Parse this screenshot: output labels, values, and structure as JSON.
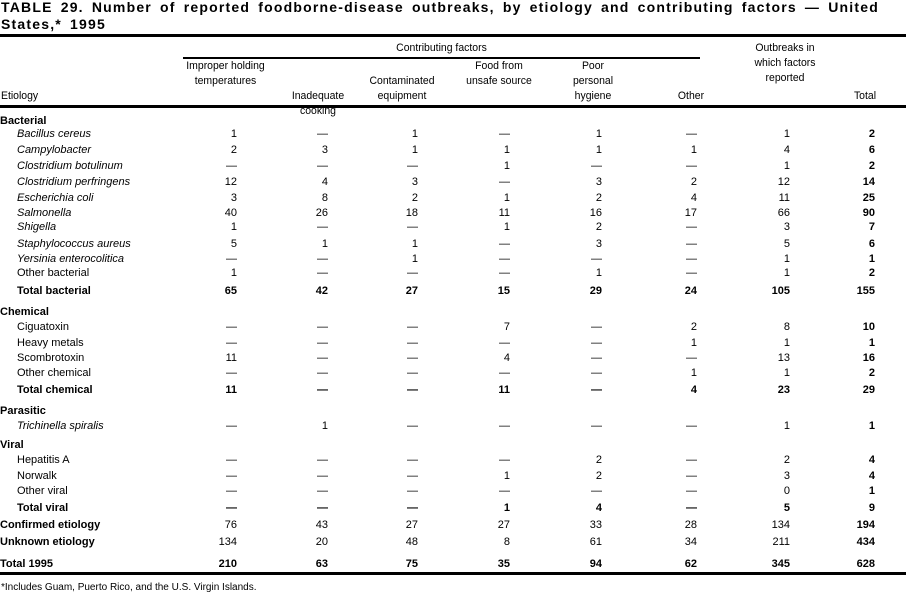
{
  "title": "TABLE 29. Number of reported foodborne-disease outbreaks, by etiology and contributing factors — United States,* 1995",
  "header": {
    "etiology": "Etiology",
    "group": "Contributing factors",
    "columns": [
      "Improper holding temperatures",
      "Inadequate cooking",
      "Contaminated equipment",
      "Food from unsafe source",
      "Poor personal hygiene",
      "Other",
      "Outbreaks in which factors reported",
      "Total"
    ]
  },
  "rows": [
    {
      "label": "Bacterial",
      "kind": "group",
      "values": []
    },
    {
      "label": "Bacillus cereus",
      "kind": "item",
      "italic": true,
      "values": [
        "1",
        "—",
        "1",
        "—",
        "1",
        "—",
        "1",
        "2"
      ]
    },
    {
      "label": "Campylobacter",
      "kind": "item",
      "italic": true,
      "values": [
        "2",
        "3",
        "1",
        "1",
        "1",
        "1",
        "4",
        "6"
      ]
    },
    {
      "label": "Clostridium botulinum",
      "kind": "item",
      "italic": true,
      "values": [
        "—",
        "—",
        "—",
        "1",
        "—",
        "—",
        "1",
        "2"
      ]
    },
    {
      "label": "Clostridium perfringens",
      "kind": "item",
      "italic": true,
      "values": [
        "12",
        "4",
        "3",
        "—",
        "3",
        "2",
        "12",
        "14"
      ]
    },
    {
      "label": "Escherichia coli",
      "kind": "item",
      "italic": true,
      "values": [
        "3",
        "8",
        "2",
        "1",
        "2",
        "4",
        "11",
        "25"
      ]
    },
    {
      "label": "Salmonella",
      "kind": "item",
      "italic": true,
      "values": [
        "40",
        "26",
        "18",
        "11",
        "16",
        "17",
        "66",
        "90"
      ]
    },
    {
      "label": "Shigella",
      "kind": "item",
      "italic": true,
      "values": [
        "1",
        "—",
        "—",
        "1",
        "2",
        "—",
        "3",
        "7"
      ]
    },
    {
      "label": "Staphylococcus aureus",
      "kind": "item",
      "italic": true,
      "values": [
        "5",
        "1",
        "1",
        "—",
        "3",
        "—",
        "5",
        "6"
      ]
    },
    {
      "label": "Yersinia enterocolitica",
      "kind": "item",
      "italic": true,
      "values": [
        "—",
        "—",
        "1",
        "—",
        "—",
        "—",
        "1",
        "1"
      ]
    },
    {
      "label": "Other bacterial",
      "kind": "item",
      "values": [
        "1",
        "—",
        "—",
        "—",
        "1",
        "—",
        "1",
        "2"
      ]
    },
    {
      "label": "Total bacterial",
      "kind": "total",
      "values": [
        "65",
        "42",
        "27",
        "15",
        "29",
        "24",
        "105",
        "155"
      ]
    },
    {
      "label": "Chemical",
      "kind": "group",
      "values": []
    },
    {
      "label": "Ciguatoxin",
      "kind": "item",
      "values": [
        "—",
        "—",
        "—",
        "7",
        "—",
        "2",
        "8",
        "10"
      ]
    },
    {
      "label": "Heavy metals",
      "kind": "item",
      "values": [
        "—",
        "—",
        "—",
        "—",
        "—",
        "1",
        "1",
        "1"
      ]
    },
    {
      "label": "Scombrotoxin",
      "kind": "item",
      "values": [
        "11",
        "—",
        "—",
        "4",
        "—",
        "—",
        "13",
        "16"
      ]
    },
    {
      "label": "Other chemical",
      "kind": "item",
      "values": [
        "—",
        "—",
        "—",
        "—",
        "—",
        "1",
        "1",
        "2"
      ]
    },
    {
      "label": "Total chemical",
      "kind": "total",
      "values": [
        "11",
        "—",
        "—",
        "11",
        "—",
        "4",
        "23",
        "29"
      ]
    },
    {
      "label": "Parasitic",
      "kind": "group",
      "values": []
    },
    {
      "label": "Trichinella spiralis",
      "kind": "item",
      "italic": true,
      "values": [
        "—",
        "1",
        "—",
        "—",
        "—",
        "—",
        "1",
        "1"
      ]
    },
    {
      "label": "Viral",
      "kind": "group",
      "values": []
    },
    {
      "label": "Hepatitis A",
      "kind": "item",
      "values": [
        "—",
        "—",
        "—",
        "—",
        "2",
        "—",
        "2",
        "4"
      ]
    },
    {
      "label": "Norwalk",
      "kind": "item",
      "values": [
        "—",
        "—",
        "—",
        "1",
        "2",
        "—",
        "3",
        "4"
      ]
    },
    {
      "label": "Other viral",
      "kind": "item",
      "values": [
        "—",
        "—",
        "—",
        "—",
        "—",
        "—",
        "0",
        "1"
      ]
    },
    {
      "label": "Total viral",
      "kind": "total",
      "values": [
        "—",
        "—",
        "—",
        "1",
        "4",
        "—",
        "5",
        "9"
      ]
    },
    {
      "label": "Confirmed etiology",
      "kind": "summary",
      "values": [
        "76",
        "43",
        "27",
        "27",
        "33",
        "28",
        "134",
        "194"
      ]
    },
    {
      "label": "Unknown etiology",
      "kind": "summary",
      "values": [
        "134",
        "20",
        "48",
        "8",
        "61",
        "34",
        "211",
        "434"
      ]
    },
    {
      "label": "Total 1995",
      "kind": "grand",
      "values": [
        "210",
        "63",
        "75",
        "35",
        "94",
        "62",
        "345",
        "628"
      ]
    }
  ],
  "footnote": "*Includes Guam, Puerto Rico, and the U.S. Virgin Islands."
}
